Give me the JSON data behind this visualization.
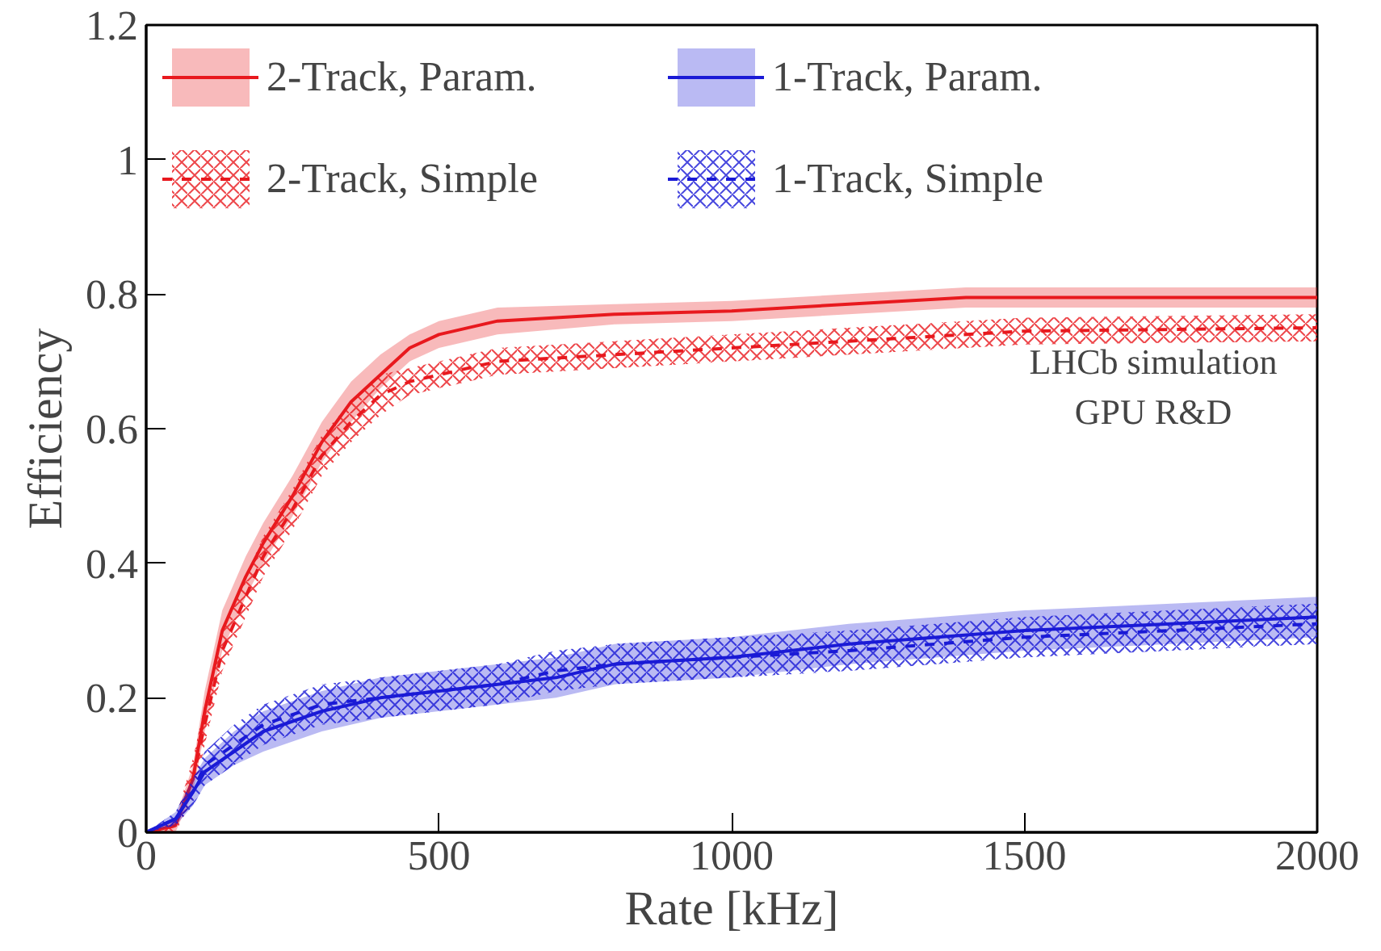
{
  "chart_data": {
    "type": "line",
    "xlabel": "Rate [kHz]",
    "ylabel": "Efficiency",
    "xlim": [
      0,
      2000
    ],
    "ylim": [
      0,
      1.2
    ],
    "xticks": [
      0,
      500,
      1000,
      1500,
      2000
    ],
    "yticks": [
      0,
      0.2,
      0.4,
      0.6,
      0.8,
      1,
      1.2
    ],
    "grid": false,
    "legend": "top",
    "marker": "none",
    "series": [
      {
        "name": "2-Track, Param.",
        "color": "#e8191e",
        "line_style": "solid",
        "x": [
          0,
          50,
          80,
          100,
          130,
          170,
          200,
          250,
          300,
          350,
          400,
          450,
          500,
          600,
          800,
          1000,
          1200,
          1400,
          1600,
          2000
        ],
        "values": [
          0,
          0.01,
          0.08,
          0.18,
          0.3,
          0.38,
          0.43,
          0.5,
          0.58,
          0.64,
          0.68,
          0.72,
          0.74,
          0.76,
          0.77,
          0.775,
          0.785,
          0.795,
          0.795,
          0.795
        ],
        "lower": [
          0,
          0,
          0.06,
          0.15,
          0.27,
          0.35,
          0.4,
          0.47,
          0.55,
          0.61,
          0.66,
          0.7,
          0.72,
          0.74,
          0.755,
          0.76,
          0.77,
          0.78,
          0.78,
          0.78
        ],
        "upper": [
          0,
          0.02,
          0.1,
          0.21,
          0.33,
          0.41,
          0.46,
          0.53,
          0.61,
          0.67,
          0.71,
          0.74,
          0.76,
          0.78,
          0.785,
          0.79,
          0.8,
          0.81,
          0.81,
          0.81
        ]
      },
      {
        "name": "2-Track, Simple",
        "color": "#e8191e",
        "line_style": "dashed",
        "x": [
          0,
          50,
          80,
          100,
          130,
          170,
          200,
          250,
          300,
          350,
          400,
          450,
          500,
          600,
          800,
          1000,
          1200,
          1500,
          2000
        ],
        "values": [
          0,
          0.01,
          0.08,
          0.16,
          0.27,
          0.35,
          0.41,
          0.48,
          0.56,
          0.61,
          0.65,
          0.67,
          0.68,
          0.7,
          0.71,
          0.72,
          0.73,
          0.745,
          0.75
        ],
        "lower": [
          0,
          0,
          0.05,
          0.13,
          0.24,
          0.32,
          0.38,
          0.45,
          0.53,
          0.58,
          0.62,
          0.65,
          0.66,
          0.68,
          0.69,
          0.7,
          0.71,
          0.725,
          0.73
        ],
        "upper": [
          0,
          0.02,
          0.11,
          0.19,
          0.3,
          0.38,
          0.44,
          0.51,
          0.59,
          0.64,
          0.68,
          0.69,
          0.7,
          0.72,
          0.73,
          0.74,
          0.75,
          0.765,
          0.77
        ]
      },
      {
        "name": "1-Track, Param.",
        "color": "#1a1ad6",
        "line_style": "solid",
        "x": [
          0,
          50,
          80,
          100,
          150,
          200,
          300,
          400,
          500,
          600,
          700,
          800,
          1000,
          1200,
          1500,
          2000
        ],
        "values": [
          0,
          0.02,
          0.06,
          0.09,
          0.12,
          0.15,
          0.18,
          0.2,
          0.21,
          0.22,
          0.23,
          0.25,
          0.26,
          0.28,
          0.3,
          0.32
        ],
        "lower": [
          0,
          0.01,
          0.04,
          0.07,
          0.1,
          0.12,
          0.15,
          0.17,
          0.18,
          0.19,
          0.2,
          0.22,
          0.23,
          0.25,
          0.27,
          0.29
        ],
        "upper": [
          0,
          0.03,
          0.08,
          0.11,
          0.15,
          0.18,
          0.21,
          0.23,
          0.24,
          0.25,
          0.26,
          0.28,
          0.29,
          0.31,
          0.33,
          0.35
        ]
      },
      {
        "name": "1-Track, Simple",
        "color": "#1a1ad6",
        "line_style": "dashed",
        "x": [
          0,
          50,
          80,
          100,
          150,
          200,
          300,
          400,
          500,
          600,
          700,
          800,
          1000,
          1200,
          1500,
          2000
        ],
        "values": [
          0,
          0.02,
          0.06,
          0.1,
          0.13,
          0.16,
          0.19,
          0.2,
          0.21,
          0.22,
          0.24,
          0.25,
          0.26,
          0.27,
          0.29,
          0.31
        ],
        "lower": [
          0,
          0.01,
          0.04,
          0.07,
          0.1,
          0.13,
          0.16,
          0.17,
          0.18,
          0.19,
          0.21,
          0.22,
          0.23,
          0.24,
          0.26,
          0.28
        ],
        "upper": [
          0,
          0.03,
          0.08,
          0.12,
          0.16,
          0.19,
          0.22,
          0.23,
          0.24,
          0.25,
          0.27,
          0.28,
          0.29,
          0.3,
          0.32,
          0.34
        ]
      }
    ],
    "annotations": [
      "LHCb simulation",
      "GPU R&D"
    ]
  }
}
